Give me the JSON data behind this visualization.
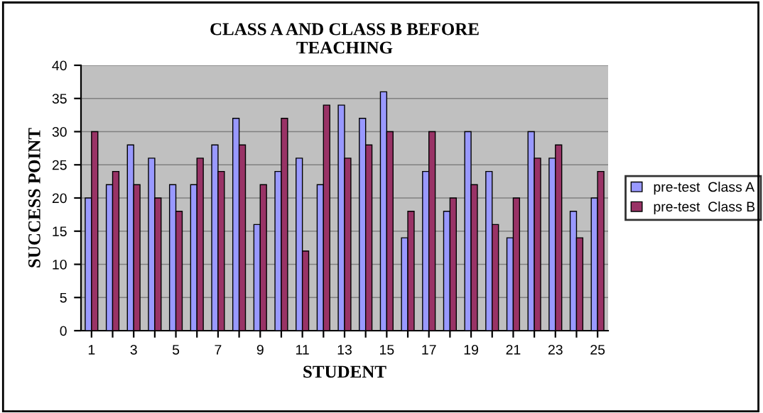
{
  "chart_data": {
    "type": "bar",
    "title": "CLASS A AND CLASS B BEFORE\nTEACHING",
    "xlabel": "STUDENT",
    "ylabel": "SUCCESS POINT",
    "categories": [
      "1",
      null,
      "3",
      null,
      "5",
      null,
      "7",
      null,
      "9",
      null,
      "11",
      null,
      "13",
      null,
      "15",
      null,
      "17",
      null,
      "19",
      null,
      "21",
      null,
      "23",
      null,
      "25"
    ],
    "series": [
      {
        "name": "pre-test  Class A",
        "color": "#9999ff",
        "values": [
          20,
          22,
          28,
          26,
          22,
          22,
          28,
          32,
          16,
          24,
          26,
          22,
          34,
          32,
          36,
          14,
          24,
          18,
          30,
          24,
          14,
          30,
          26,
          18,
          20
        ]
      },
      {
        "name": "pre-test  Class B",
        "color": "#993366",
        "values": [
          30,
          24,
          22,
          20,
          18,
          26,
          24,
          28,
          22,
          32,
          12,
          34,
          26,
          28,
          30,
          18,
          30,
          20,
          22,
          16,
          20,
          26,
          28,
          14,
          24
        ]
      }
    ],
    "ylim": [
      0,
      40
    ],
    "yticks": [
      0,
      5,
      10,
      15,
      20,
      25,
      30,
      35,
      40
    ],
    "grid": "y",
    "legend": "right"
  }
}
